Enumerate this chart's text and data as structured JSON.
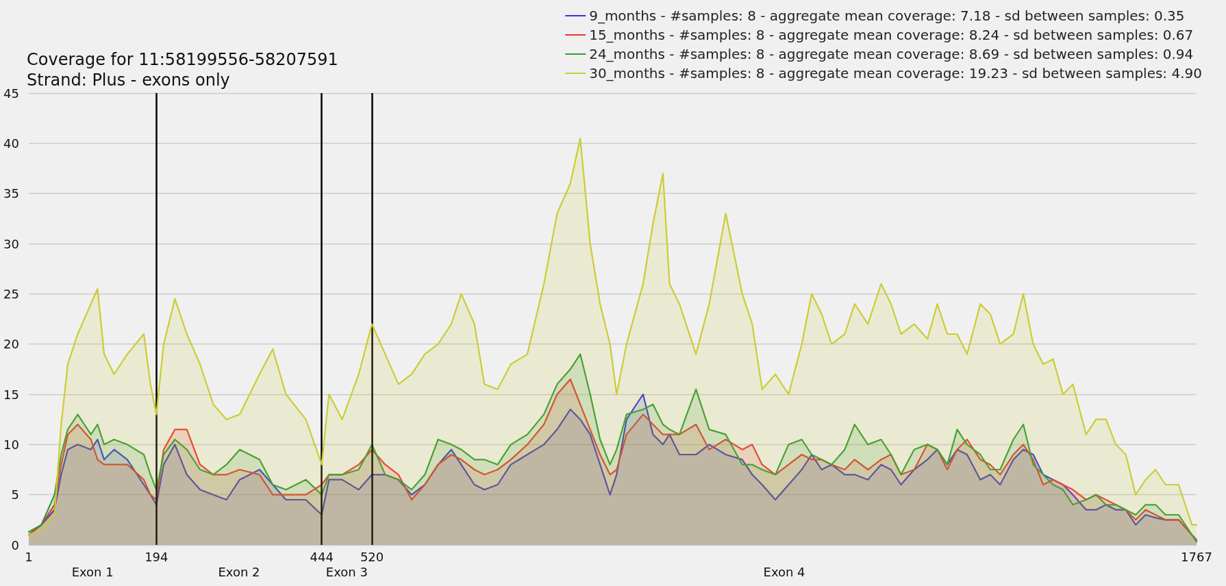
{
  "chart_data": {
    "type": "area",
    "title": "Coverage for 11:58199556-58207591",
    "subtitle": "Strand: Plus - exons only",
    "x": [
      1,
      20,
      40,
      50,
      60,
      75,
      95,
      105,
      115,
      130,
      150,
      175,
      185,
      194,
      205,
      222,
      240,
      260,
      280,
      300,
      320,
      350,
      370,
      390,
      420,
      444,
      455,
      475,
      500,
      520,
      540,
      560,
      580,
      600,
      620,
      640,
      655,
      675,
      690,
      710,
      730,
      755,
      780,
      800,
      820,
      835,
      850,
      865,
      880,
      890,
      905,
      930,
      945,
      960,
      970,
      985,
      1010,
      1030,
      1055,
      1080,
      1095,
      1110,
      1130,
      1150,
      1170,
      1185,
      1200,
      1215,
      1235,
      1250,
      1270,
      1290,
      1305,
      1320,
      1340,
      1360,
      1375,
      1390,
      1405,
      1420,
      1440,
      1455,
      1470,
      1490,
      1505,
      1520,
      1535,
      1550,
      1565,
      1580,
      1600,
      1615,
      1630,
      1645,
      1660,
      1675,
      1690,
      1705,
      1720,
      1740,
      1760,
      1767
    ],
    "series": [
      {
        "name": "9_months - #samples: 8 - aggregate mean coverage: 7.18 - sd between samples: 0.35",
        "color": "#3333dd",
        "values": [
          1,
          2,
          3.5,
          7,
          9.5,
          10,
          9.5,
          10.5,
          8.5,
          9.5,
          8.5,
          6,
          5,
          4,
          8,
          10,
          7,
          5.5,
          5,
          4.5,
          6.5,
          7.5,
          6,
          4.5,
          4.5,
          3,
          6.5,
          6.5,
          5.5,
          7,
          7,
          6.5,
          5,
          6,
          8,
          9.5,
          8,
          6,
          5.5,
          6,
          8,
          9,
          10,
          11.5,
          13.5,
          12.5,
          11,
          8,
          5,
          7,
          12.5,
          15,
          11,
          10,
          11,
          9,
          9,
          10,
          9,
          8.5,
          7,
          6,
          4.5,
          6,
          7.5,
          9,
          7.5,
          8,
          7,
          7,
          6.5,
          8,
          7.5,
          6,
          7.5,
          8.5,
          9.5,
          8,
          9.5,
          9,
          6.5,
          7,
          6,
          8.5,
          9.5,
          9,
          7,
          6.5,
          6,
          5,
          3.5,
          3.5,
          4,
          3.5,
          3.5,
          2,
          3,
          2.7,
          2.5,
          2.5,
          1,
          0.5
        ]
      },
      {
        "name": "15_months - #samples: 8 - aggregate mean coverage: 8.24 - sd between samples: 0.67",
        "color": "#ee3333",
        "values": [
          1,
          2,
          4,
          8,
          11,
          12,
          10.5,
          8.5,
          8,
          8,
          8,
          6.5,
          5,
          4.5,
          9.5,
          11.5,
          11.5,
          8,
          7,
          7,
          7.5,
          7,
          5,
          5,
          5,
          6,
          7,
          7,
          8,
          9.5,
          8,
          7,
          4.5,
          6,
          8,
          9,
          8.5,
          7.5,
          7,
          7.5,
          8.5,
          10,
          12,
          15,
          16.5,
          14,
          11.5,
          9,
          7,
          7.5,
          11,
          13,
          12,
          11,
          11,
          11,
          12,
          9.5,
          10.5,
          9.5,
          10,
          8,
          7,
          8,
          9,
          8.5,
          8.5,
          8,
          7.5,
          8.5,
          7.5,
          8.5,
          9,
          7,
          7.5,
          10,
          9.5,
          7.5,
          9.5,
          10.5,
          8.5,
          8,
          7,
          9,
          10,
          8.5,
          6,
          6.5,
          6,
          5.5,
          4.5,
          5,
          4.5,
          4,
          3.5,
          2.5,
          3.5,
          3,
          2.5,
          2.5,
          1,
          0.5
        ]
      },
      {
        "name": "24_months - #samples: 8 - aggregate mean coverage: 8.69 - sd between samples: 0.94",
        "color": "#339933",
        "values": [
          1.3,
          2,
          5,
          9,
          11.5,
          13,
          11,
          12,
          10,
          10.5,
          10,
          9,
          7,
          5.5,
          9,
          10.5,
          9.5,
          7.5,
          7,
          8,
          9.5,
          8.5,
          6,
          5.5,
          6.5,
          5,
          7,
          7,
          7.5,
          10,
          7,
          6.5,
          5.5,
          7,
          10.5,
          10,
          9.5,
          8.5,
          8.5,
          8,
          10,
          11,
          13,
          16,
          17.5,
          19,
          15,
          10.5,
          8,
          9.5,
          13,
          13.5,
          14,
          12,
          11.5,
          11,
          15.5,
          11.5,
          11,
          8,
          8,
          7.5,
          7,
          10,
          10.5,
          9,
          8.5,
          8,
          9.5,
          12,
          10,
          10.5,
          9,
          7,
          9.5,
          10,
          9.5,
          8,
          11.5,
          10,
          9,
          7.5,
          7.5,
          10.5,
          12,
          8,
          7,
          6,
          5.5,
          4,
          4.5,
          5,
          4,
          4,
          3.5,
          3,
          4,
          4,
          3,
          3,
          1,
          0.3
        ]
      },
      {
        "name": "30_months - #samples: 8 - aggregate mean coverage: 19.23 - sd between samples: 4.90",
        "color": "#cccc33",
        "values": [
          1,
          1.5,
          3,
          12,
          18,
          21,
          24,
          25.5,
          19,
          17,
          19,
          21,
          16,
          13,
          20,
          24.5,
          21,
          18,
          14,
          12.5,
          13,
          17,
          19.5,
          15,
          12.5,
          8,
          15,
          12.5,
          17,
          22,
          19,
          16,
          17,
          19,
          20,
          22,
          25,
          22,
          16,
          15.5,
          18,
          19,
          26,
          33,
          36,
          40.5,
          30,
          24,
          20,
          15,
          20,
          26,
          32,
          37,
          26,
          24,
          19,
          24,
          33,
          25,
          22,
          15.5,
          17,
          15,
          20,
          25,
          23,
          20,
          21,
          24,
          22,
          26,
          24,
          21,
          22,
          20.5,
          24,
          21,
          21,
          19,
          24,
          23,
          20,
          21,
          25,
          20,
          18,
          18.5,
          15,
          16,
          11,
          12.5,
          12.5,
          10,
          9,
          5,
          6.5,
          7.5,
          6,
          6,
          2,
          2
        ]
      }
    ],
    "xlim": [
      1,
      1767
    ],
    "xticks": [
      1,
      194,
      444,
      520,
      1767
    ],
    "ylim": [
      0,
      45
    ],
    "yticks": [
      0,
      5,
      10,
      15,
      20,
      25,
      30,
      35,
      40,
      45
    ],
    "grid": "y",
    "legend": "top right",
    "ref_lines": [
      {
        "axis": "x",
        "value": 194,
        "color": "#000000"
      },
      {
        "axis": "x",
        "value": 444,
        "color": "#000000"
      },
      {
        "axis": "x",
        "value": 520,
        "color": "#000000"
      }
    ],
    "annotations": [
      "Exon 1",
      "Exon 2",
      "Exon 3",
      "Exon 4"
    ]
  }
}
